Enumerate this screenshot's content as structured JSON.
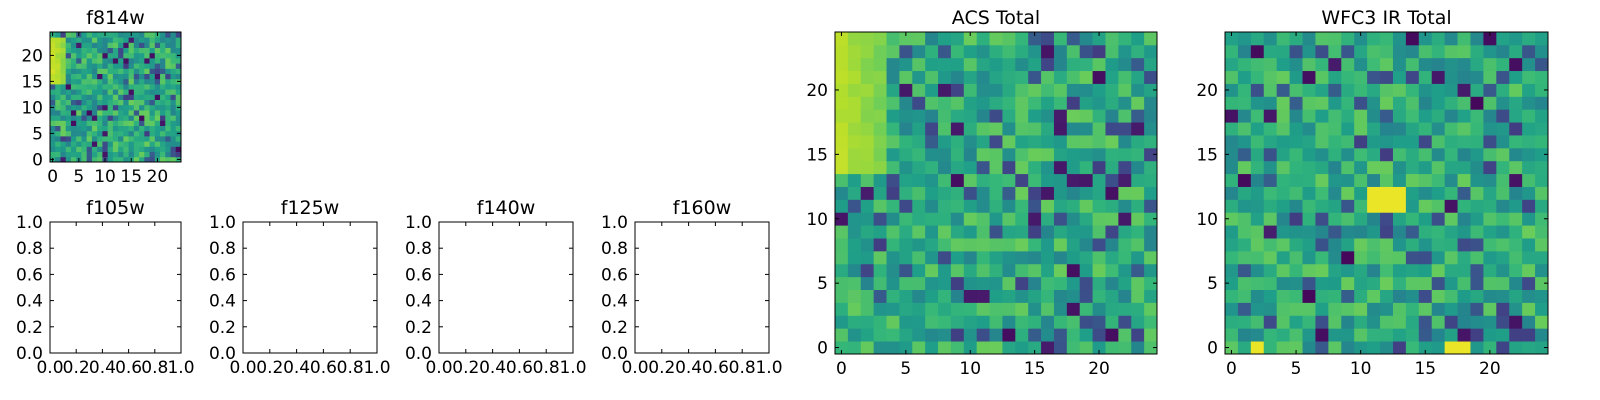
{
  "chart_data": [
    {
      "id": "f814w",
      "type": "heatmap",
      "title": "f814w",
      "xlim": [
        -0.5,
        24.5
      ],
      "ylim": [
        -0.5,
        24.5
      ],
      "xticks": [
        0,
        5,
        10,
        15,
        20
      ],
      "yticks": [
        0,
        5,
        10,
        15,
        20
      ],
      "grid": false,
      "colormap": "viridis",
      "rows": 25,
      "cols": 25,
      "seed": 814,
      "hot_region": {
        "x": [
          0,
          2
        ],
        "y": [
          15,
          23
        ],
        "level": 0.95
      },
      "value_range": [
        0,
        1
      ]
    },
    {
      "id": "f105w",
      "type": "heatmap",
      "title": "f105w",
      "empty": true,
      "xlim": [
        0.0,
        1.0
      ],
      "ylim": [
        0.0,
        1.0
      ],
      "xticks": [
        "0.0",
        "0.2",
        "0.4",
        "0.6",
        "0.8",
        "1.0"
      ],
      "yticks": [
        "0.0",
        "0.2",
        "0.4",
        "0.6",
        "0.8",
        "1.0"
      ]
    },
    {
      "id": "f125w",
      "type": "heatmap",
      "title": "f125w",
      "empty": true,
      "xlim": [
        0.0,
        1.0
      ],
      "ylim": [
        0.0,
        1.0
      ],
      "xticks": [
        "0.0",
        "0.2",
        "0.4",
        "0.6",
        "0.8",
        "1.0"
      ],
      "yticks": [
        "0.0",
        "0.2",
        "0.4",
        "0.6",
        "0.8",
        "1.0"
      ]
    },
    {
      "id": "f140w",
      "type": "heatmap",
      "title": "f140w",
      "empty": true,
      "xlim": [
        0.0,
        1.0
      ],
      "ylim": [
        0.0,
        1.0
      ],
      "xticks": [
        "0.0",
        "0.2",
        "0.4",
        "0.6",
        "0.8",
        "1.0"
      ],
      "yticks": [
        "0.0",
        "0.2",
        "0.4",
        "0.6",
        "0.8",
        "1.0"
      ]
    },
    {
      "id": "f160w",
      "type": "heatmap",
      "title": "f160w",
      "empty": true,
      "xlim": [
        0.0,
        1.0
      ],
      "ylim": [
        0.0,
        1.0
      ],
      "xticks": [
        "0.0",
        "0.2",
        "0.4",
        "0.6",
        "0.8",
        "1.0"
      ],
      "yticks": [
        "0.0",
        "0.2",
        "0.4",
        "0.6",
        "0.8",
        "1.0"
      ]
    },
    {
      "id": "acs_total",
      "type": "heatmap",
      "title": "ACS Total",
      "xlim": [
        -0.5,
        24.5
      ],
      "ylim": [
        -0.5,
        24.5
      ],
      "xticks": [
        0,
        5,
        10,
        15,
        20
      ],
      "yticks": [
        0,
        5,
        10,
        15,
        20
      ],
      "grid": false,
      "colormap": "viridis",
      "rows": 25,
      "cols": 25,
      "seed": 2718,
      "hot_region": {
        "x": [
          0,
          3
        ],
        "y": [
          14,
          24
        ],
        "level": 0.92
      },
      "value_range": [
        0,
        1
      ]
    },
    {
      "id": "wfc3_ir_total",
      "type": "heatmap",
      "title": "WFC3 IR Total",
      "xlim": [
        -0.5,
        24.5
      ],
      "ylim": [
        -0.5,
        24.5
      ],
      "xticks": [
        0,
        5,
        10,
        15,
        20
      ],
      "yticks": [
        0,
        5,
        10,
        15,
        20
      ],
      "grid": false,
      "colormap": "viridis",
      "rows": 25,
      "cols": 25,
      "seed": 3141,
      "hot_spots": [
        {
          "x": [
            11,
            13
          ],
          "y": [
            11,
            12
          ],
          "level": 0.97
        },
        {
          "x": [
            17,
            18
          ],
          "y": [
            0,
            0
          ],
          "level": 0.97
        },
        {
          "x": [
            2,
            2
          ],
          "y": [
            0,
            0
          ],
          "level": 0.97
        }
      ],
      "value_range": [
        0,
        1
      ]
    }
  ],
  "colors": {
    "viridis": [
      "#440154",
      "#482878",
      "#3e4989",
      "#31688e",
      "#26828e",
      "#1f9e89",
      "#35b779",
      "#6ece58",
      "#b5de2b",
      "#fde725"
    ],
    "axis": "#000000",
    "background": "#ffffff"
  }
}
